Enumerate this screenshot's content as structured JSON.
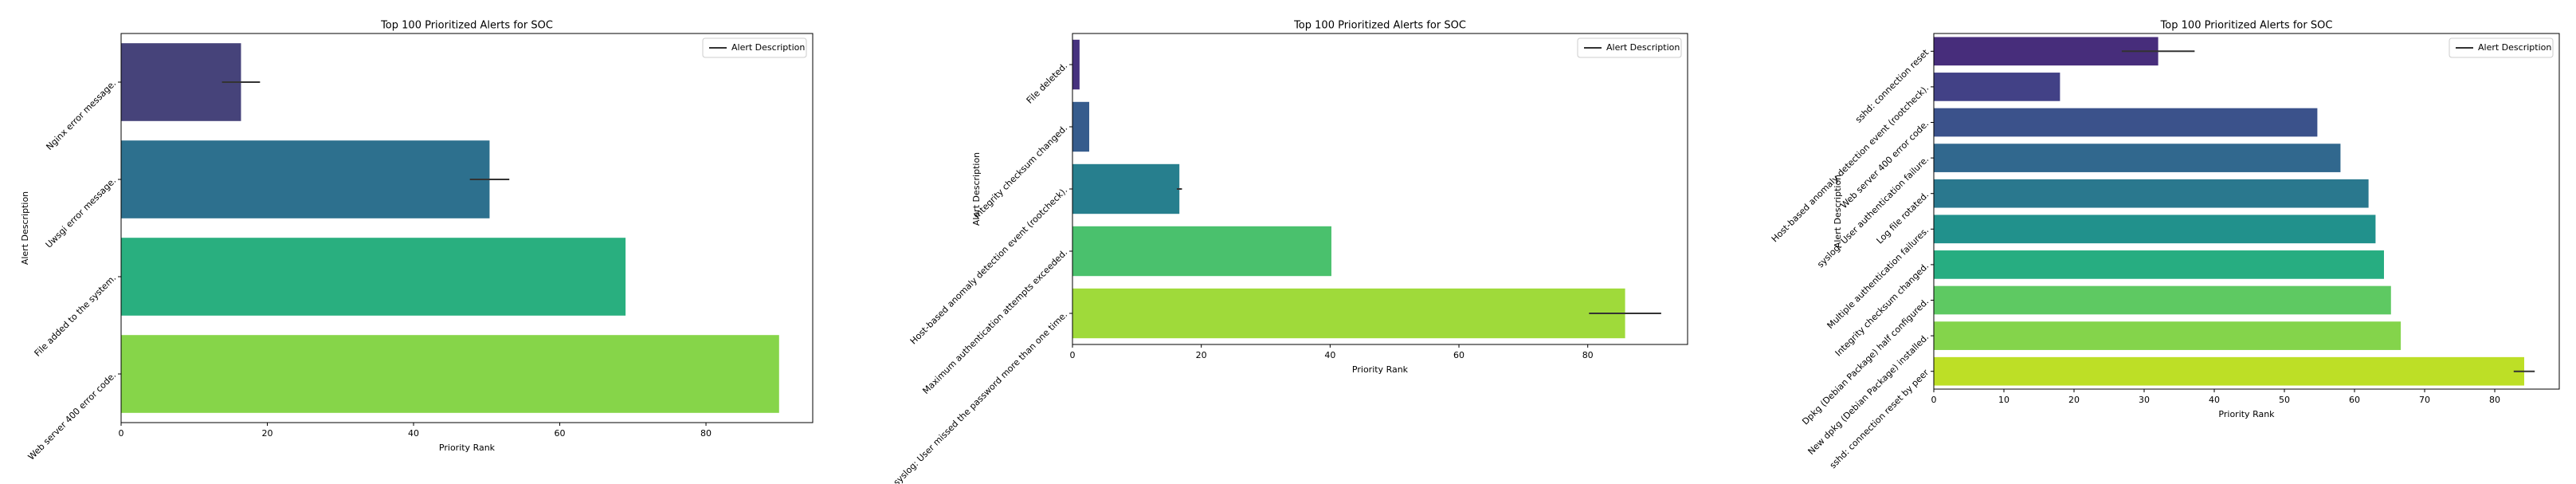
{
  "chart_data": [
    {
      "type": "bar",
      "orientation": "horizontal",
      "title": "Top 100 Prioritized Alerts for SOC",
      "xlabel": "Priority Rank",
      "ylabel": "Alert Description",
      "legend": "upper right",
      "categories": [
        "Nginx error message.",
        "Uwsgi error message.",
        "File added to the system.",
        "Web server 400 error code."
      ],
      "series": [
        {
          "name": "Alert Description",
          "values": [
            16.4,
            50.4,
            69,
            90
          ],
          "errors": [
            2.6,
            2.7,
            null,
            null
          ],
          "colors": [
            "#46437a",
            "#2d708e",
            "#29af7f",
            "#86d549"
          ]
        }
      ],
      "xlim": [
        0,
        94.6
      ],
      "xticks": [
        0,
        20,
        40,
        60,
        80
      ]
    },
    {
      "type": "bar",
      "orientation": "horizontal",
      "title": "Top 100 Prioritized Alerts for SOC",
      "xlabel": "Priority Rank",
      "ylabel": "Alert Description",
      "legend": "upper right",
      "categories": [
        "File deleted.",
        "Integrity checksum changed.",
        "Host-based anomaly detection event (rootcheck).",
        "Maximum authentication attempts exceeded.",
        "syslog: User missed the password more than one time."
      ],
      "series": [
        {
          "name": "Alert Description",
          "values": [
            1.1,
            2.6,
            16.6,
            40.2,
            85.8
          ],
          "errors": [
            null,
            null,
            0.4,
            null,
            5.6
          ],
          "colors": [
            "#46327e",
            "#365c8d",
            "#277f8e",
            "#4ac16d",
            "#9fda3a"
          ]
        }
      ],
      "xlim": [
        0,
        95.5
      ],
      "xticks": [
        0,
        20,
        40,
        60,
        80
      ]
    },
    {
      "type": "bar",
      "orientation": "horizontal",
      "title": "Top 100 Prioritized Alerts for SOC",
      "xlabel": "Priority Rank",
      "ylabel": "Alert Description",
      "legend": "upper right",
      "categories": [
        "sshd: connection reset",
        "Host-based anomaly detection event (rootcheck).",
        "Web server 400 error code.",
        "syslog: User authentication failure.",
        "Log file rotated.",
        "Multiple authentication failures.",
        "Integrity checksum changed.",
        "Dpkg (Debian Package) half configured.",
        "New dpkg (Debian Package) installed.",
        "sshd: connection reset by peer"
      ],
      "series": [
        {
          "name": "Alert Description",
          "values": [
            32,
            18,
            54.7,
            58,
            62,
            63,
            64.2,
            65.2,
            66.6,
            84.2
          ],
          "errors": [
            5.2,
            null,
            null,
            null,
            null,
            null,
            null,
            null,
            null,
            1.5
          ],
          "colors": [
            "#472d7b",
            "#424186",
            "#3b528b",
            "#31688e",
            "#2a788e",
            "#21918c",
            "#27ad81",
            "#5ec962",
            "#84d44b",
            "#bddf26"
          ]
        }
      ],
      "xlim": [
        0,
        89.2
      ],
      "xticks": [
        0,
        10,
        20,
        30,
        40,
        50,
        60,
        70,
        80
      ]
    }
  ]
}
